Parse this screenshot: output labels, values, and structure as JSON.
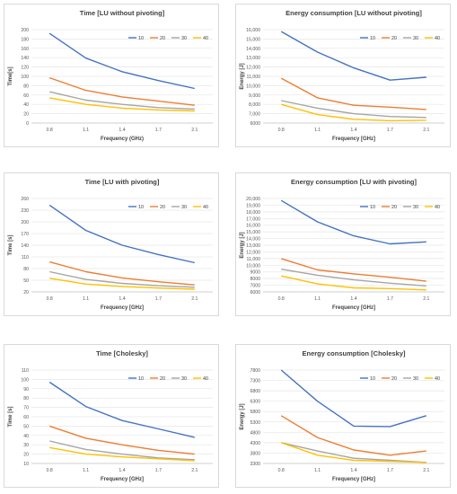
{
  "chart_data": [
    {
      "type": "line",
      "title": "Time [LU without pivoting]",
      "xlabel": "Frequency (GHz)",
      "ylabel": "Time[s]",
      "categories": [
        "0.8",
        "1.1",
        "1.4",
        "1.7",
        "2.1"
      ],
      "ylim": [
        0,
        200
      ],
      "yticks": [
        "0",
        "20",
        "40",
        "60",
        "80",
        "100",
        "120",
        "140",
        "160",
        "180",
        "200"
      ],
      "legend_position": "top-right",
      "series": [
        {
          "name": "10",
          "color": "#4472c4",
          "values": [
            192,
            139,
            110,
            91,
            74
          ]
        },
        {
          "name": "20",
          "color": "#ed7d31",
          "values": [
            97,
            70,
            56,
            47,
            38
          ]
        },
        {
          "name": "30",
          "color": "#a5a5a5",
          "values": [
            67,
            49,
            40,
            33,
            30
          ]
        },
        {
          "name": "40",
          "color": "#ffc000",
          "values": [
            54,
            40,
            32,
            28,
            26
          ]
        }
      ]
    },
    {
      "type": "line",
      "title": "Energy consumption [LU without pivoting]",
      "xlabel": "Frequency [GHz]",
      "ylabel": "Energy [J]",
      "categories": [
        "0.8",
        "1.1",
        "1.4",
        "1.7",
        "2.1"
      ],
      "ylim": [
        6000,
        16000
      ],
      "yticks": [
        "6000",
        "7,000",
        "8,000",
        "9,000",
        "10,000",
        "11,000",
        "12,000",
        "13,000",
        "14,000",
        "15,000",
        "16,000"
      ],
      "legend_position": "top-right",
      "series": [
        {
          "name": "10",
          "color": "#4472c4",
          "values": [
            15800,
            13600,
            11900,
            10600,
            10900
          ]
        },
        {
          "name": "20",
          "color": "#ed7d31",
          "values": [
            10800,
            8700,
            7900,
            7700,
            7450
          ]
        },
        {
          "name": "30",
          "color": "#a5a5a5",
          "values": [
            8400,
            7600,
            7000,
            6700,
            6600
          ]
        },
        {
          "name": "40",
          "color": "#ffc000",
          "values": [
            8000,
            6900,
            6400,
            6250,
            6300
          ]
        }
      ]
    },
    {
      "type": "line",
      "title": "Time [LU with pivoting]",
      "xlabel": "Frequency [GHz]",
      "ylabel": "Time [s]",
      "categories": [
        "0.8",
        "1.1",
        "1.4",
        "1.7",
        "2.1"
      ],
      "ylim": [
        20,
        260
      ],
      "yticks": [
        "20",
        "50",
        "80",
        "110",
        "140",
        "170",
        "200",
        "230",
        "260"
      ],
      "legend_position": "top-right",
      "series": [
        {
          "name": "10",
          "color": "#4472c4",
          "values": [
            243,
            178,
            140,
            116,
            95
          ]
        },
        {
          "name": "20",
          "color": "#ed7d31",
          "values": [
            97,
            72,
            56,
            46,
            38
          ]
        },
        {
          "name": "30",
          "color": "#a5a5a5",
          "values": [
            72,
            52,
            42,
            36,
            32
          ]
        },
        {
          "name": "40",
          "color": "#ffc000",
          "values": [
            55,
            40,
            34,
            30,
            27
          ]
        }
      ]
    },
    {
      "type": "line",
      "title": "Energy consumption [LU with pivoting]",
      "xlabel": "Frequency [GHz]",
      "ylabel": "Energy [J]",
      "categories": [
        "0.8",
        "1.1",
        "1.4",
        "1.7",
        "2.1"
      ],
      "ylim": [
        6000,
        20000
      ],
      "yticks": [
        "6000",
        "7000",
        "8000",
        "9000",
        "10,000",
        "11,000",
        "12,000",
        "13,000",
        "14,000",
        "15,000",
        "16,000",
        "17,000",
        "18,000",
        "19,000",
        "20,000"
      ],
      "legend_position": "top-right",
      "series": [
        {
          "name": "10",
          "color": "#4472c4",
          "values": [
            19700,
            16500,
            14400,
            13200,
            13500
          ]
        },
        {
          "name": "20",
          "color": "#ed7d31",
          "values": [
            11000,
            9300,
            8700,
            8200,
            7600
          ]
        },
        {
          "name": "30",
          "color": "#a5a5a5",
          "values": [
            9400,
            8500,
            7800,
            7300,
            6900
          ]
        },
        {
          "name": "40",
          "color": "#ffc000",
          "values": [
            8400,
            7200,
            6600,
            6500,
            6300
          ]
        }
      ]
    },
    {
      "type": "line",
      "title": "Time [Cholesky]",
      "xlabel": "Frequency [GHz]",
      "ylabel": "Time [s]",
      "categories": [
        "0.8",
        "1.1",
        "1.4",
        "1.7",
        "2.1"
      ],
      "ylim": [
        10,
        110
      ],
      "yticks": [
        "10",
        "20",
        "30",
        "40",
        "50",
        "60",
        "70",
        "80",
        "90",
        "100",
        "110"
      ],
      "legend_position": "top-right",
      "series": [
        {
          "name": "10",
          "color": "#4472c4",
          "values": [
            97,
            71,
            56,
            47,
            38
          ]
        },
        {
          "name": "20",
          "color": "#ed7d31",
          "values": [
            50,
            37,
            30,
            24,
            20
          ]
        },
        {
          "name": "30",
          "color": "#a5a5a5",
          "values": [
            34,
            25,
            20,
            16,
            14
          ]
        },
        {
          "name": "40",
          "color": "#ffc000",
          "values": [
            27,
            20,
            17,
            15,
            13
          ]
        }
      ]
    },
    {
      "type": "line",
      "title": "Energy consumption [Cholesky]",
      "xlabel": "Frequency [GHz]",
      "ylabel": "Energy [J]",
      "categories": [
        "0.8",
        "1.1",
        "1.4",
        "1.7",
        "2.1"
      ],
      "ylim": [
        3300,
        7800
      ],
      "yticks": [
        "3300",
        "3800",
        "4300",
        "4800",
        "5300",
        "5800",
        "6300",
        "6800",
        "7300",
        "7800"
      ],
      "legend_position": "top-right",
      "series": [
        {
          "name": "10",
          "color": "#4472c4",
          "values": [
            7800,
            6300,
            5100,
            5080,
            5600
          ]
        },
        {
          "name": "20",
          "color": "#ed7d31",
          "values": [
            5600,
            4550,
            3950,
            3700,
            3900
          ]
        },
        {
          "name": "30",
          "color": "#a5a5a5",
          "values": [
            4300,
            3900,
            3550,
            3450,
            3350
          ]
        },
        {
          "name": "40",
          "color": "#ffc000",
          "values": [
            4300,
            3700,
            3450,
            3400,
            3350
          ]
        }
      ]
    }
  ]
}
